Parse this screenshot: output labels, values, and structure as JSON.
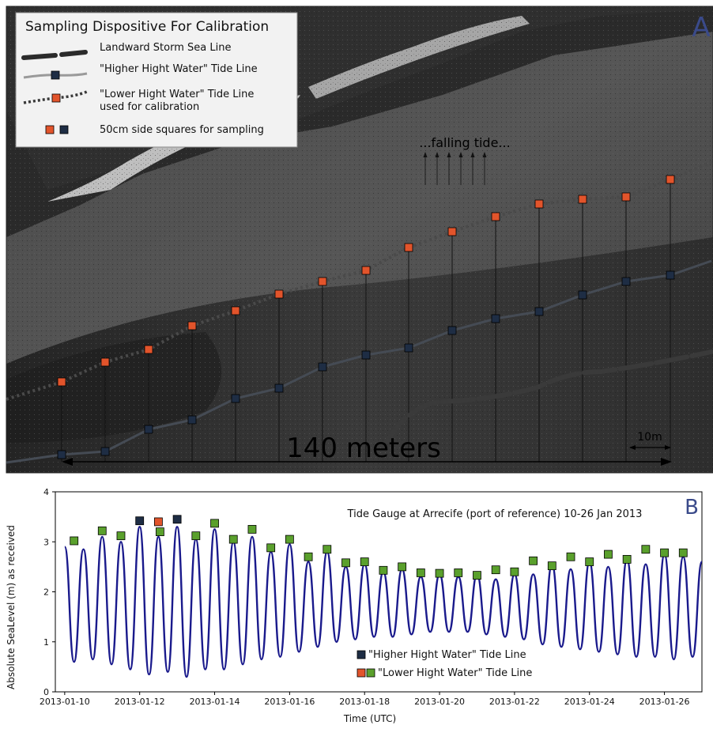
{
  "panel_a": {
    "letter": "A",
    "legend": {
      "title": "Sampling Dispositive For Calibration",
      "items": [
        {
          "label": "Landward Storm Sea Line",
          "icon": "thick-dashed-line-icon"
        },
        {
          "label": "\"Higher Hight Water\" Tide Line",
          "icon": "grey-line-navy-square-icon"
        },
        {
          "label": "\"Lower Hight Water\" Tide Line\nused for calibration",
          "icon": "dotted-line-orange-square-icon"
        },
        {
          "label": "50cm side squares for sampling",
          "icon": "orange-navy-squares-icon"
        }
      ]
    },
    "falling_tide_label": "...falling tide...",
    "scale_main": "140 meters",
    "scale_small": "10m",
    "colors": {
      "lower_square": "#e2542b",
      "higher_square": "#1e2d44",
      "lower_line": "#444444",
      "higher_line": "#444a52",
      "storm_line": "#3a3a3a"
    }
  },
  "chart_data": {
    "type": "line",
    "letter": "B",
    "title": "Tide Gauge at Arrecife (port of reference) 10-26 Jan 2013",
    "xlabel": "Time (UTC)",
    "ylabel": "Absolute SeaLevel (m) as received",
    "ylim": [
      0,
      4
    ],
    "xlim": [
      "2013-01-09 18:00",
      "2013-01-27 00:00"
    ],
    "yticks": [
      "0",
      "1",
      "2",
      "3",
      "4"
    ],
    "xticks": [
      "2013-01-10",
      "2013-01-12",
      "2013-01-14",
      "2013-01-16",
      "2013-01-18",
      "2013-01-20",
      "2013-01-22",
      "2013-01-24",
      "2013-01-26"
    ],
    "grid": false,
    "legend_position": "bottom-center",
    "series": [
      {
        "name": "sea level",
        "color": "#1a1a8c",
        "x": [
          "2013-01-10 00:00",
          "2013-01-10 06:00",
          "2013-01-10 12:00",
          "2013-01-10 18:00",
          "2013-01-11 00:00",
          "2013-01-11 06:00",
          "2013-01-11 12:00",
          "2013-01-11 18:00",
          "2013-01-12 00:00",
          "2013-01-12 06:00",
          "2013-01-12 12:00",
          "2013-01-12 18:00",
          "2013-01-13 00:00",
          "2013-01-13 06:00",
          "2013-01-13 12:00",
          "2013-01-13 18:00",
          "2013-01-14 00:00",
          "2013-01-14 06:00",
          "2013-01-14 12:00",
          "2013-01-14 18:00",
          "2013-01-15 00:00",
          "2013-01-15 06:00",
          "2013-01-15 12:00",
          "2013-01-15 18:00",
          "2013-01-16 00:00",
          "2013-01-16 06:00",
          "2013-01-16 12:00",
          "2013-01-16 18:00",
          "2013-01-17 00:00",
          "2013-01-17 06:00",
          "2013-01-17 12:00",
          "2013-01-17 18:00",
          "2013-01-18 00:00",
          "2013-01-18 06:00",
          "2013-01-18 12:00",
          "2013-01-18 18:00",
          "2013-01-19 00:00",
          "2013-01-19 06:00",
          "2013-01-19 12:00",
          "2013-01-19 18:00",
          "2013-01-20 00:00",
          "2013-01-20 06:00",
          "2013-01-20 12:00",
          "2013-01-20 18:00",
          "2013-01-21 00:00",
          "2013-01-21 06:00",
          "2013-01-21 12:00",
          "2013-01-21 18:00",
          "2013-01-22 00:00",
          "2013-01-22 06:00",
          "2013-01-22 12:00",
          "2013-01-22 18:00",
          "2013-01-23 00:00",
          "2013-01-23 06:00",
          "2013-01-23 12:00",
          "2013-01-23 18:00",
          "2013-01-24 00:00",
          "2013-01-24 06:00",
          "2013-01-24 12:00",
          "2013-01-24 18:00",
          "2013-01-25 00:00",
          "2013-01-25 06:00",
          "2013-01-25 12:00",
          "2013-01-25 18:00",
          "2013-01-26 00:00",
          "2013-01-26 06:00",
          "2013-01-26 12:00",
          "2013-01-26 18:00",
          "2013-01-27 00:00"
        ],
        "y": [
          2.9,
          0.6,
          2.85,
          0.65,
          3.1,
          0.55,
          3.0,
          0.45,
          3.3,
          0.35,
          3.1,
          0.4,
          3.3,
          0.3,
          3.05,
          0.45,
          3.25,
          0.45,
          3.0,
          0.55,
          3.1,
          0.65,
          2.8,
          0.7,
          2.95,
          0.8,
          2.6,
          0.9,
          2.8,
          1.0,
          2.5,
          1.05,
          2.55,
          1.1,
          2.4,
          1.1,
          2.45,
          1.15,
          2.3,
          1.2,
          2.35,
          1.2,
          2.3,
          1.2,
          2.35,
          1.15,
          2.25,
          1.1,
          2.35,
          1.05,
          2.35,
          0.95,
          2.55,
          0.9,
          2.45,
          0.85,
          2.6,
          0.8,
          2.5,
          0.75,
          2.65,
          0.7,
          2.55,
          0.7,
          2.75,
          0.65,
          2.7,
          0.7,
          2.6
        ]
      },
      {
        "name": "\"Higher Hight Water\" Tide Line",
        "color": "#1e2d44",
        "x": [
          "2013-01-12 00:00",
          "2013-01-13 00:00"
        ],
        "y": [
          3.42,
          3.45
        ]
      },
      {
        "name": "\"Lower Hight Water\" Tide Line",
        "colors": [
          "#e2542b",
          "#5aa02c"
        ],
        "x": [
          "2013-01-10 06:00",
          "2013-01-11 00:00",
          "2013-01-11 12:00",
          "2013-01-12 12:00",
          "2013-01-12 13:00",
          "2013-01-13 12:00",
          "2013-01-14 00:00",
          "2013-01-14 12:00",
          "2013-01-15 00:00",
          "2013-01-15 12:00",
          "2013-01-16 00:00",
          "2013-01-16 12:00",
          "2013-01-17 00:00",
          "2013-01-17 12:00",
          "2013-01-18 00:00",
          "2013-01-18 12:00",
          "2013-01-19 00:00",
          "2013-01-19 12:00",
          "2013-01-20 00:00",
          "2013-01-20 12:00",
          "2013-01-21 00:00",
          "2013-01-21 12:00",
          "2013-01-22 00:00",
          "2013-01-22 12:00",
          "2013-01-23 00:00",
          "2013-01-23 12:00",
          "2013-01-24 00:00",
          "2013-01-24 12:00",
          "2013-01-25 00:00",
          "2013-01-25 12:00",
          "2013-01-26 00:00",
          "2013-01-26 12:00"
        ],
        "y": [
          3.02,
          3.22,
          3.12,
          3.4,
          3.2,
          3.12,
          3.37,
          3.05,
          3.25,
          2.88,
          3.05,
          2.7,
          2.85,
          2.58,
          2.6,
          2.43,
          2.5,
          2.38,
          2.37,
          2.38,
          2.33,
          2.44,
          2.4,
          2.62,
          2.52,
          2.7,
          2.6,
          2.75,
          2.65,
          2.85,
          2.78,
          2.78
        ]
      }
    ],
    "legend": [
      {
        "label": "\"Higher Hight Water\" Tide Line",
        "colors": [
          "#1e2d44"
        ]
      },
      {
        "label": "\"Lower Hight Water\" Tide Line",
        "colors": [
          "#e2542b",
          "#5aa02c"
        ]
      }
    ]
  }
}
